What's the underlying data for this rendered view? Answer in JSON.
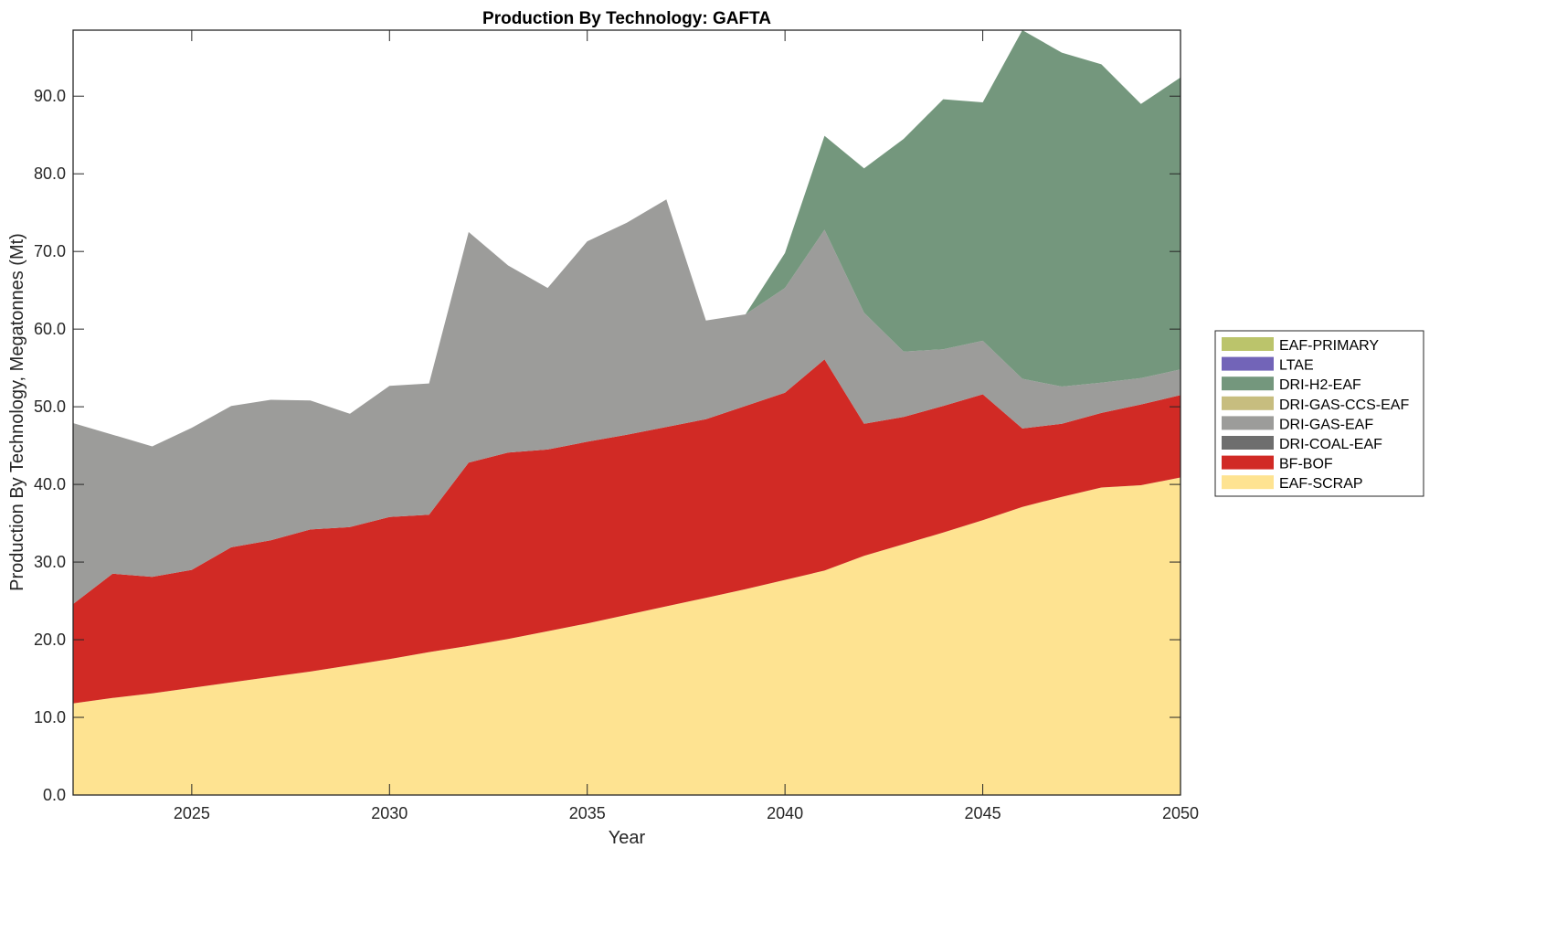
{
  "chart_data": {
    "type": "area",
    "stacked": true,
    "title": "Production By Technology: GAFTA",
    "xlabel": "Year",
    "ylabel": "Production By Technology, Megatonnes (Mt)",
    "xlim": [
      2022,
      2050
    ],
    "ylim": [
      0,
      98.5
    ],
    "xticks": [
      2025,
      2030,
      2035,
      2040,
      2045,
      2050
    ],
    "xtick_labels": [
      "2025",
      "2030",
      "2035",
      "2040",
      "2045",
      "2050"
    ],
    "yticks": [
      0,
      10,
      20,
      30,
      40,
      50,
      60,
      70,
      80,
      90
    ],
    "ytick_labels": [
      "0.0",
      "10.0",
      "20.0",
      "30.0",
      "40.0",
      "50.0",
      "60.0",
      "70.0",
      "80.0",
      "90.0"
    ],
    "grid": false,
    "legend_position": "right",
    "x": [
      2022,
      2023,
      2024,
      2025,
      2026,
      2027,
      2028,
      2029,
      2030,
      2031,
      2032,
      2033,
      2034,
      2035,
      2036,
      2037,
      2038,
      2039,
      2040,
      2041,
      2042,
      2043,
      2044,
      2045,
      2046,
      2047,
      2048,
      2049,
      2050
    ],
    "series": [
      {
        "name": "EAF-SCRAP",
        "color": "#FEE391",
        "values": [
          11.8,
          12.5,
          13.1,
          13.8,
          14.5,
          15.2,
          15.9,
          16.7,
          17.5,
          18.4,
          19.2,
          20.1,
          21.1,
          22.1,
          23.2,
          24.3,
          25.4,
          26.5,
          27.7,
          28.9,
          30.8,
          32.3,
          33.8,
          35.4,
          37.1,
          38.4,
          39.6,
          39.9,
          40.9
        ]
      },
      {
        "name": "BF-BOF",
        "color": "#D12A25",
        "values": [
          12.8,
          16.0,
          15.0,
          15.2,
          17.4,
          17.6,
          18.3,
          17.8,
          18.3,
          17.7,
          23.6,
          24.0,
          23.4,
          23.4,
          23.2,
          23.1,
          23.0,
          23.6,
          24.1,
          27.2,
          17.0,
          16.4,
          16.3,
          16.2,
          10.1,
          9.4,
          9.6,
          10.4,
          10.6
        ]
      },
      {
        "name": "DRI-COAL-EAF",
        "color": "#6E6E6E",
        "values": [
          0,
          0,
          0,
          0,
          0,
          0,
          0,
          0,
          0,
          0,
          0,
          0,
          0,
          0,
          0,
          0,
          0,
          0,
          0,
          0,
          0,
          0,
          0,
          0,
          0,
          0,
          0,
          0,
          0
        ]
      },
      {
        "name": "DRI-GAS-EAF",
        "color": "#9C9C9A",
        "values": [
          23.3,
          17.9,
          16.8,
          18.3,
          18.2,
          18.1,
          16.6,
          14.6,
          16.9,
          16.9,
          29.7,
          24.1,
          20.8,
          25.8,
          27.3,
          29.3,
          12.7,
          11.8,
          13.5,
          16.7,
          14.3,
          8.4,
          7.3,
          6.9,
          6.4,
          4.8,
          3.9,
          3.4,
          3.3
        ]
      },
      {
        "name": "DRI-GAS-CCS-EAF",
        "color": "#C7BD7F",
        "values": [
          0,
          0,
          0,
          0,
          0,
          0,
          0,
          0,
          0,
          0,
          0,
          0,
          0,
          0,
          0,
          0,
          0,
          0,
          0,
          0,
          0,
          0,
          0,
          0,
          0,
          0,
          0,
          0,
          0
        ]
      },
      {
        "name": "DRI-H2-EAF",
        "color": "#74977D",
        "values": [
          0,
          0,
          0,
          0,
          0,
          0,
          0,
          0,
          0,
          0,
          0,
          0,
          0,
          0,
          0,
          0,
          0,
          0,
          4.5,
          12.1,
          18.6,
          27.4,
          32.2,
          30.7,
          44.9,
          43.0,
          41.0,
          35.3,
          37.6
        ]
      },
      {
        "name": "LTAE",
        "color": "#7264B8",
        "values": [
          0,
          0,
          0,
          0,
          0,
          0,
          0,
          0,
          0,
          0,
          0,
          0,
          0,
          0,
          0,
          0,
          0,
          0,
          0,
          0,
          0,
          0,
          0,
          0,
          0,
          0,
          0,
          0,
          0
        ]
      },
      {
        "name": "EAF-PRIMARY",
        "color": "#BBC46B",
        "values": [
          0,
          0,
          0,
          0,
          0,
          0,
          0,
          0,
          0,
          0,
          0,
          0,
          0,
          0,
          0,
          0,
          0,
          0,
          0,
          0,
          0,
          0,
          0,
          0,
          0,
          0,
          0,
          0,
          0
        ]
      }
    ],
    "legend_order": [
      "EAF-PRIMARY",
      "LTAE",
      "DRI-H2-EAF",
      "DRI-GAS-CCS-EAF",
      "DRI-GAS-EAF",
      "DRI-COAL-EAF",
      "BF-BOF",
      "EAF-SCRAP"
    ]
  }
}
